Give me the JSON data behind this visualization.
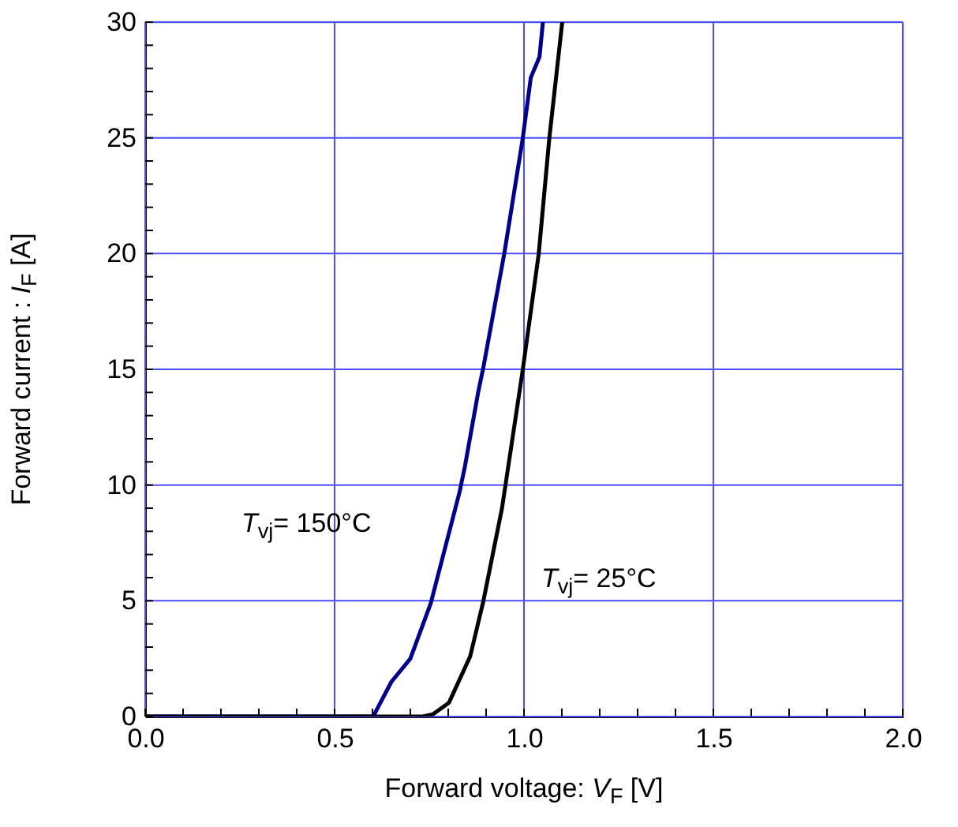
{
  "chart_data": {
    "type": "line",
    "xlabel": "Forward voltage: V$_{F}$ [V]",
    "ylabel": "Forward current : I$_{F}$ [A]",
    "series": [
      {
        "color": "#00008b",
        "x": [
          0.0,
          0.6,
          0.605,
          0.65,
          0.7,
          0.754,
          0.83,
          0.844,
          0.879,
          0.893,
          0.948,
          0.997,
          1.018,
          1.041,
          1.05
        ],
        "values": [
          0,
          0,
          0.1,
          1.5,
          2.5,
          4.9,
          9.7,
          10.8,
          14.0,
          15.1,
          20.0,
          25.0,
          27.6,
          28.5,
          30
        ]
      },
      {
        "color": "#000000",
        "x": [
          0.0,
          0.733,
          0.76,
          0.802,
          0.858,
          0.893,
          0.942,
          0.997,
          1.039,
          1.067,
          1.101
        ],
        "values": [
          0,
          0,
          0.1,
          0.6,
          2.6,
          5.0,
          9.0,
          15.0,
          20.0,
          25.0,
          30
        ]
      }
    ],
    "xlim": [
      0,
      2
    ],
    "ylim": [
      0,
      30
    ],
    "xticks": [
      {
        "value": 0,
        "label": "0.0"
      },
      {
        "value": 0.1,
        "label": null
      },
      {
        "value": 0.2,
        "label": null
      },
      {
        "value": 0.3,
        "label": null
      },
      {
        "value": 0.4,
        "label": null
      },
      {
        "value": 0.5,
        "label": "0.5"
      },
      {
        "value": 0.6,
        "label": null
      },
      {
        "value": 0.7,
        "label": null
      },
      {
        "value": 0.8,
        "label": null
      },
      {
        "value": 0.9,
        "label": null
      },
      {
        "value": 1.0,
        "label": "1.0"
      },
      {
        "value": 1.1,
        "label": null
      },
      {
        "value": 1.2,
        "label": null
      },
      {
        "value": 1.3,
        "label": null
      },
      {
        "value": 1.4,
        "label": null
      },
      {
        "value": 1.5,
        "label": "1.5"
      },
      {
        "value": 1.6,
        "label": null
      },
      {
        "value": 1.7,
        "label": null
      },
      {
        "value": 1.8,
        "label": null
      },
      {
        "value": 1.9,
        "label": null
      },
      {
        "value": 2.0,
        "label": "2.0"
      }
    ],
    "yticks": [
      0,
      {
        "value": 1,
        "label": null
      },
      {
        "value": 2,
        "label": null
      },
      {
        "value": 3,
        "label": null
      },
      {
        "value": 4,
        "label": null
      },
      5,
      {
        "value": 6,
        "label": null
      },
      {
        "value": 7,
        "label": null
      },
      {
        "value": 8,
        "label": null
      },
      {
        "value": 9,
        "label": null
      },
      10,
      {
        "value": 11,
        "label": null
      },
      {
        "value": 12,
        "label": null
      },
      {
        "value": 13,
        "label": null
      },
      {
        "value": 14,
        "label": null
      },
      15,
      {
        "value": 16,
        "label": null
      },
      {
        "value": 17,
        "label": null
      },
      {
        "value": 18,
        "label": null
      },
      {
        "value": 19,
        "label": null
      },
      20,
      {
        "value": 21,
        "label": null
      },
      {
        "value": 22,
        "label": null
      },
      {
        "value": 23,
        "label": null
      },
      {
        "value": 24,
        "label": null
      },
      25,
      {
        "value": 26,
        "label": null
      },
      {
        "value": 27,
        "label": null
      },
      {
        "value": 28,
        "label": null
      },
      {
        "value": 29,
        "label": null
      },
      30
    ],
    "grid": true,
    "annotations": [
      "T$_{vj}$= 150°C",
      "T$_{vj}$= 25°C"
    ]
  }
}
